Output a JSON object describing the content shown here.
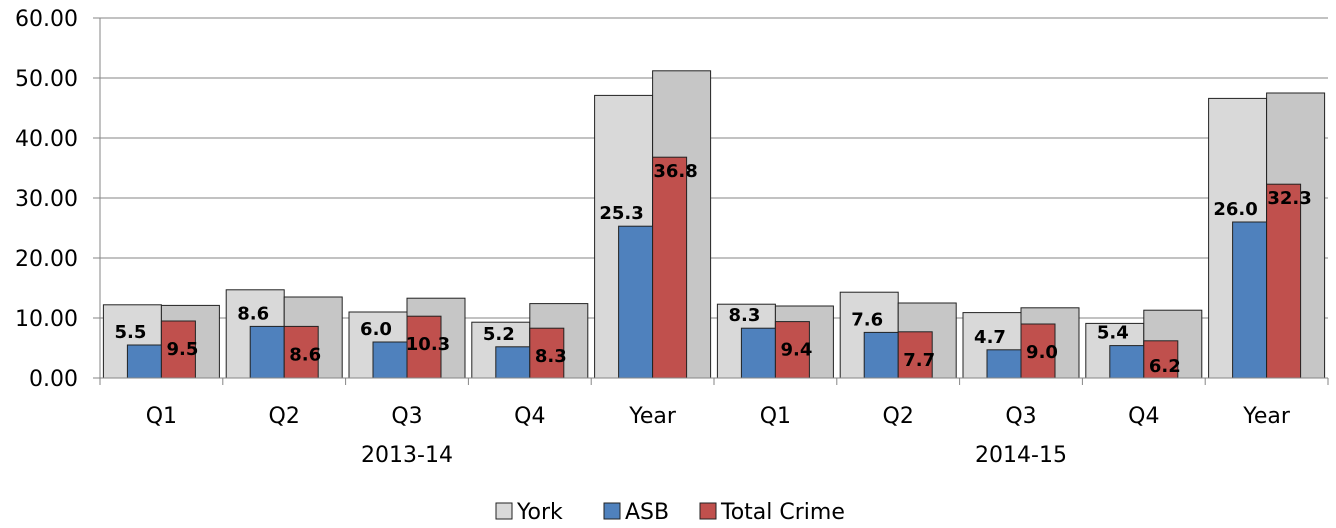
{
  "chart_data": {
    "type": "bar",
    "categories": [
      "Q1",
      "Q2",
      "Q3",
      "Q4",
      "Year",
      "Q1",
      "Q2",
      "Q3",
      "Q4",
      "Year"
    ],
    "groups": [
      {
        "label": "2013-14",
        "start": 0,
        "end": 4
      },
      {
        "label": "2014-15",
        "start": 5,
        "end": 9
      }
    ],
    "ylim": [
      0,
      60
    ],
    "yticks": [
      "0.00",
      "10.00",
      "20.00",
      "30.00",
      "40.00",
      "50.00",
      "60.00"
    ],
    "ytick_values": [
      0,
      10,
      20,
      30,
      40,
      50,
      60
    ],
    "grid": true,
    "legend_position": "bottom",
    "background_series": {
      "name": "York",
      "color": "#d9d9d9",
      "color_right": "#c6c6c6",
      "values_left": [
        12.2,
        14.7,
        11.0,
        9.3,
        47.1,
        12.3,
        14.3,
        10.9,
        9.1,
        46.6
      ],
      "values_right": [
        12.1,
        13.5,
        13.3,
        12.4,
        51.2,
        12.0,
        12.5,
        11.7,
        11.3,
        47.5
      ]
    },
    "series": [
      {
        "name": "ASB",
        "color": "#4f81bd",
        "values": [
          5.5,
          8.6,
          6.0,
          5.2,
          25.3,
          8.3,
          7.6,
          4.7,
          5.4,
          26.0
        ],
        "labels": [
          "5.5",
          "8.6",
          "6.0",
          "5.2",
          "25.3",
          "8.3",
          "7.6",
          "4.7",
          "5.4",
          "26.0"
        ]
      },
      {
        "name": "Total Crime",
        "color": "#c0504d",
        "values": [
          9.5,
          8.6,
          10.3,
          8.3,
          36.8,
          9.4,
          7.7,
          9.0,
          6.2,
          32.3
        ],
        "labels": [
          "9.5",
          "8.6",
          "10.3",
          "8.3",
          "36.8",
          "9.4",
          "7.7",
          "9.0",
          "6.2",
          "32.3"
        ]
      }
    ],
    "legend": [
      "York",
      "ASB",
      "Total Crime"
    ]
  }
}
